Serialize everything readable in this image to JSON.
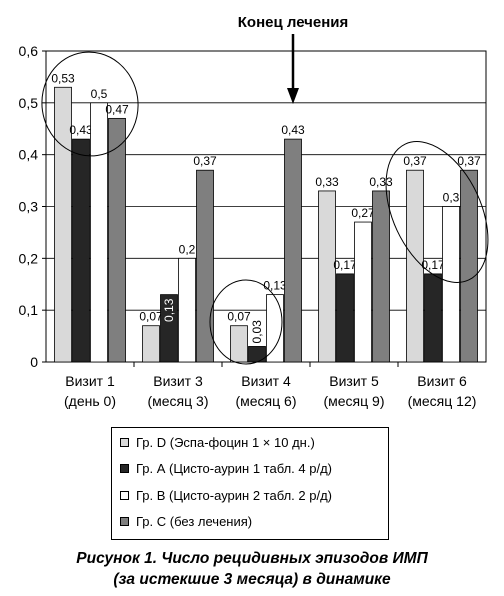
{
  "chart_data": {
    "type": "bar",
    "annotation": "Конец лечения",
    "categories": [
      {
        "line1": "Визит 1",
        "line2": "(день 0)"
      },
      {
        "line1": "Визит 3",
        "line2": "(месяц 3)"
      },
      {
        "line1": "Визит 4",
        "line2": "(месяц 6)"
      },
      {
        "line1": "Визит 5",
        "line2": "(месяц 9)"
      },
      {
        "line1": "Визит 6",
        "line2": "(месяц 12)"
      }
    ],
    "series": [
      {
        "name": "Гр. D (Эспа-фоцин 1 × 10 дн.)",
        "color": "#d9d9d9",
        "values": [
          0.53,
          0.07,
          0.07,
          0.33,
          0.37
        ],
        "labels": [
          "0,53",
          "0,07",
          "0,07",
          "0,33",
          "0,37"
        ]
      },
      {
        "name": "Гр. А (Цисто-аурин 1 табл. 4 р/д)",
        "color": "#262626",
        "values": [
          0.43,
          0.13,
          0.03,
          0.17,
          0.17
        ],
        "labels": [
          "0,43",
          "0,13",
          "0,03",
          "0,17",
          "0,17"
        ]
      },
      {
        "name": "Гр. В (Цисто-аурин 2 табл. 2 р/д)",
        "color": "#ffffff",
        "values": [
          0.5,
          0.2,
          0.13,
          0.27,
          0.3
        ],
        "labels": [
          "0,5",
          "0,2",
          "0,13",
          "0,27",
          "0,3"
        ]
      },
      {
        "name": "Гр. С (без лечения)",
        "color": "#7f7f7f",
        "values": [
          0.47,
          0.37,
          0.43,
          0.33,
          0.37
        ],
        "labels": [
          "0,47",
          "0,37",
          "0,43",
          "0,33",
          "0,37"
        ]
      }
    ],
    "ylim": [
      0,
      0.6
    ],
    "yticks": [
      "0",
      "0,1",
      "0,2",
      "0,3",
      "0,4",
      "0,5",
      "0,6"
    ],
    "grid": true,
    "legend_position": "bottom"
  },
  "caption": {
    "line1": "Рисунок 1. Число рецидивных эпизодов ИМП",
    "line2": "(за истекшие 3 месяца) в динамике"
  }
}
